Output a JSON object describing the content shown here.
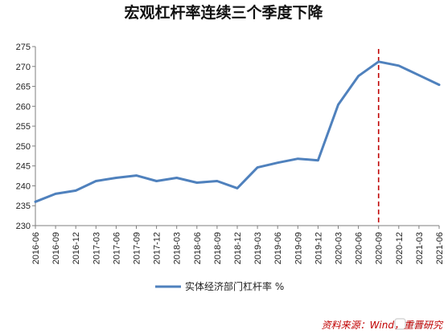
{
  "chart_data": {
    "type": "line",
    "title": "宏观杠杆率连续三个季度下降",
    "categories": [
      "2016-06",
      "2016-09",
      "2016-12",
      "2017-03",
      "2017-06",
      "2017-09",
      "2017-12",
      "2018-03",
      "2018-06",
      "2018-09",
      "2018-12",
      "2019-03",
      "2019-06",
      "2019-09",
      "2019-12",
      "2020-03",
      "2020-06",
      "2020-09",
      "2020-12",
      "2021-03",
      "2021-06"
    ],
    "series": [
      {
        "name": "实体经济部门杠杆率 %",
        "values": [
          236.0,
          238.0,
          238.8,
          241.2,
          242.0,
          242.6,
          241.2,
          242.0,
          240.8,
          241.2,
          239.4,
          244.6,
          245.8,
          246.8,
          246.4,
          260.4,
          267.6,
          271.2,
          270.2,
          267.8,
          265.4
        ],
        "color": "#4f81bd"
      }
    ],
    "ylim": [
      230,
      275
    ],
    "yticks": [
      230,
      235,
      240,
      245,
      250,
      255,
      260,
      265,
      270,
      275
    ],
    "xlabel": "",
    "ylabel": "",
    "reference_line": {
      "category": "2020-09",
      "color": "#c00000",
      "style": "dashed"
    },
    "legend": {
      "position": "bottom-center"
    },
    "grid": false
  },
  "source": "资料来源：Wind，重晋研究",
  "watermark": "格隆汇"
}
